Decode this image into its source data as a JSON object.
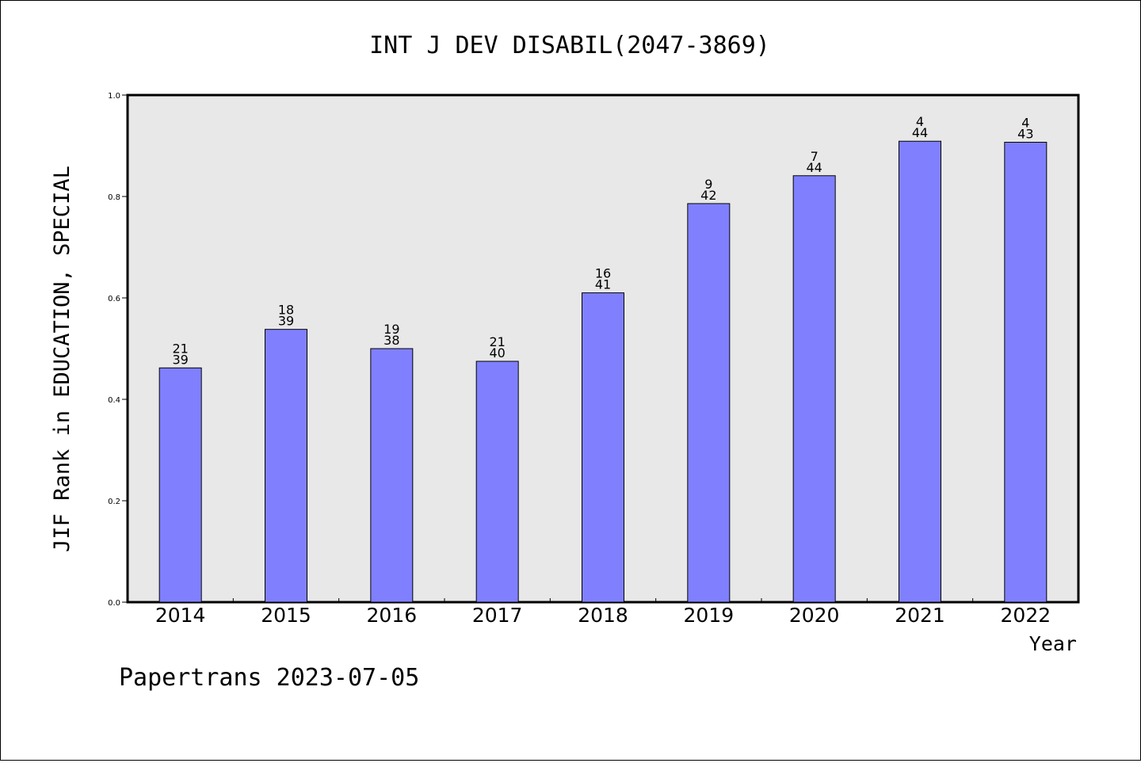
{
  "chart_data": {
    "type": "bar",
    "title": "INT J DEV DISABIL(2047-3869)",
    "xlabel": "Year",
    "ylabel": "JIF Rank in EDUCATION, SPECIAL",
    "ylim": [
      0,
      1.0
    ],
    "yticks": [
      "0.0",
      "0.2",
      "0.4",
      "0.6",
      "0.8",
      "1.0"
    ],
    "categories": [
      "2014",
      "2015",
      "2016",
      "2017",
      "2018",
      "2019",
      "2020",
      "2021",
      "2022"
    ],
    "values": [
      0.462,
      0.538,
      0.5,
      0.475,
      0.61,
      0.786,
      0.841,
      0.909,
      0.907
    ],
    "bar_labels": [
      [
        "21",
        "39"
      ],
      [
        "18",
        "39"
      ],
      [
        "19",
        "38"
      ],
      [
        "21",
        "40"
      ],
      [
        "16",
        "41"
      ],
      [
        "9",
        "42"
      ],
      [
        "7",
        "44"
      ],
      [
        "4",
        "44"
      ],
      [
        "4",
        "43"
      ]
    ],
    "grid": false,
    "bar_color": "#8080ff",
    "plot_background": "#e8e8e8"
  },
  "footer": "Papertrans 2023-07-05"
}
